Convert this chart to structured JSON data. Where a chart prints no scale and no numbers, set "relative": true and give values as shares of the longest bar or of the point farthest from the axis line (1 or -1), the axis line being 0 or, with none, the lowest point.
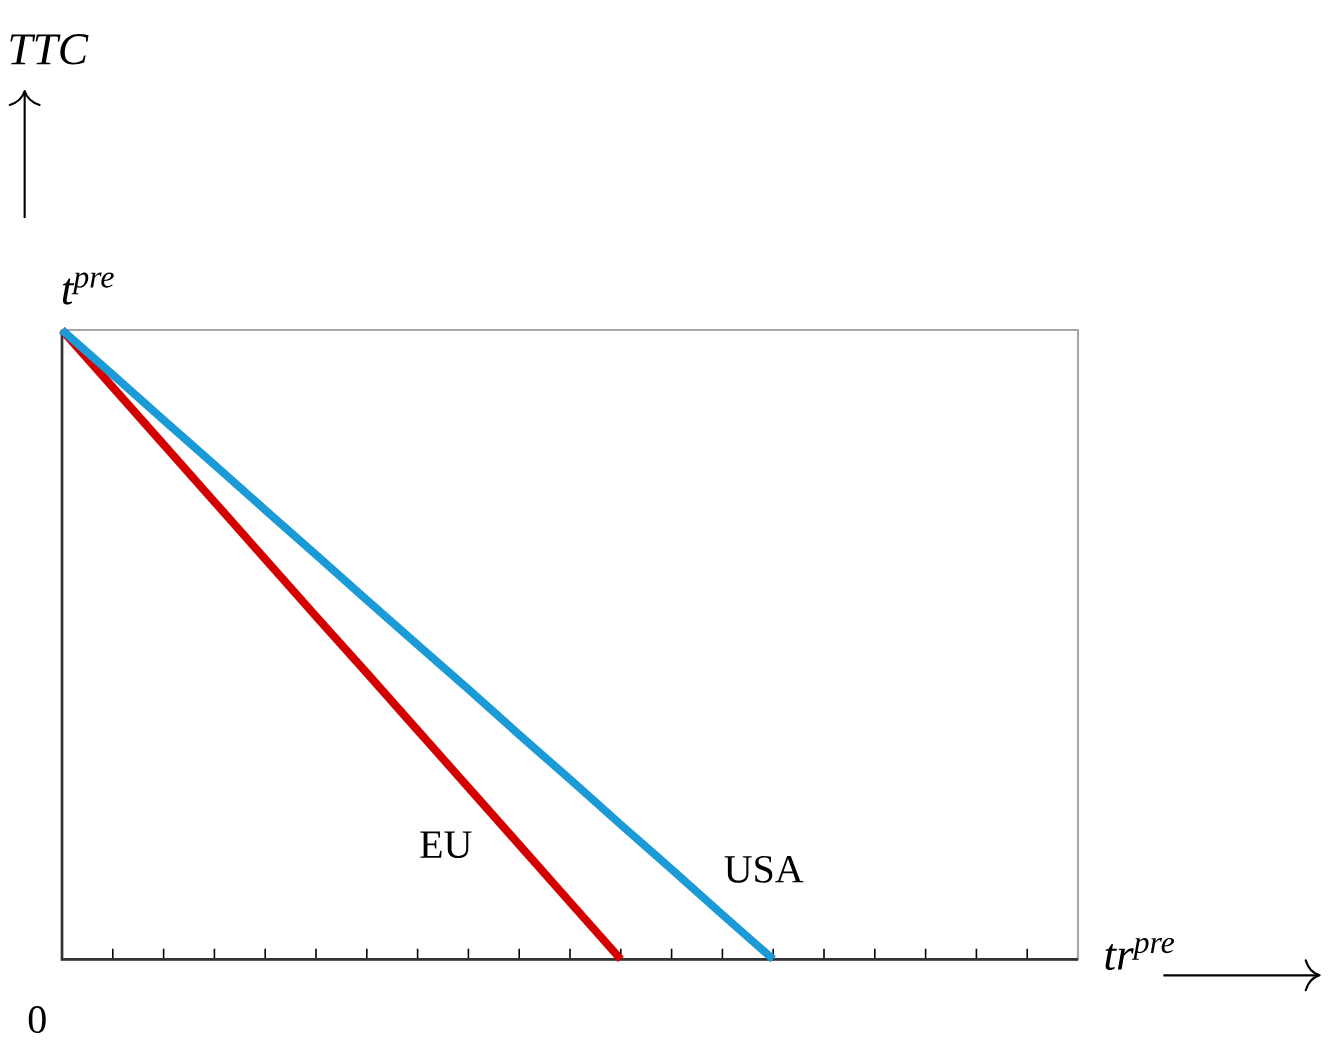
{
  "chart_data": {
    "type": "line",
    "relative": true,
    "xlabel": "tr$^{pre}$",
    "categories": [
      null,
      null,
      null,
      null,
      null,
      null,
      null,
      null,
      null,
      null,
      null,
      null,
      null,
      null,
      null,
      null,
      null,
      null,
      null,
      null,
      null
    ],
    "annotations": [
      "t$^{pre}$",
      "0",
      "TTC"
    ],
    "series": [
      {
        "name": "EU",
        "color": "#d40000",
        "values": [
          1,
          0.909,
          0.818,
          0.727,
          0.636,
          0.545,
          0.455,
          0.364,
          0.273,
          0.182,
          0.091,
          0,
          null,
          null,
          null,
          null,
          null,
          null,
          null,
          null,
          null
        ]
      },
      {
        "name": "USA",
        "color": "#1a9ad6",
        "values": [
          1,
          0.929,
          0.857,
          0.786,
          0.714,
          0.643,
          0.571,
          0.5,
          0.429,
          0.357,
          0.286,
          0.214,
          0.143,
          0.071,
          0,
          null,
          null,
          null,
          null,
          null,
          null
        ]
      }
    ],
    "marker": "none",
    "line_style": "solid"
  }
}
